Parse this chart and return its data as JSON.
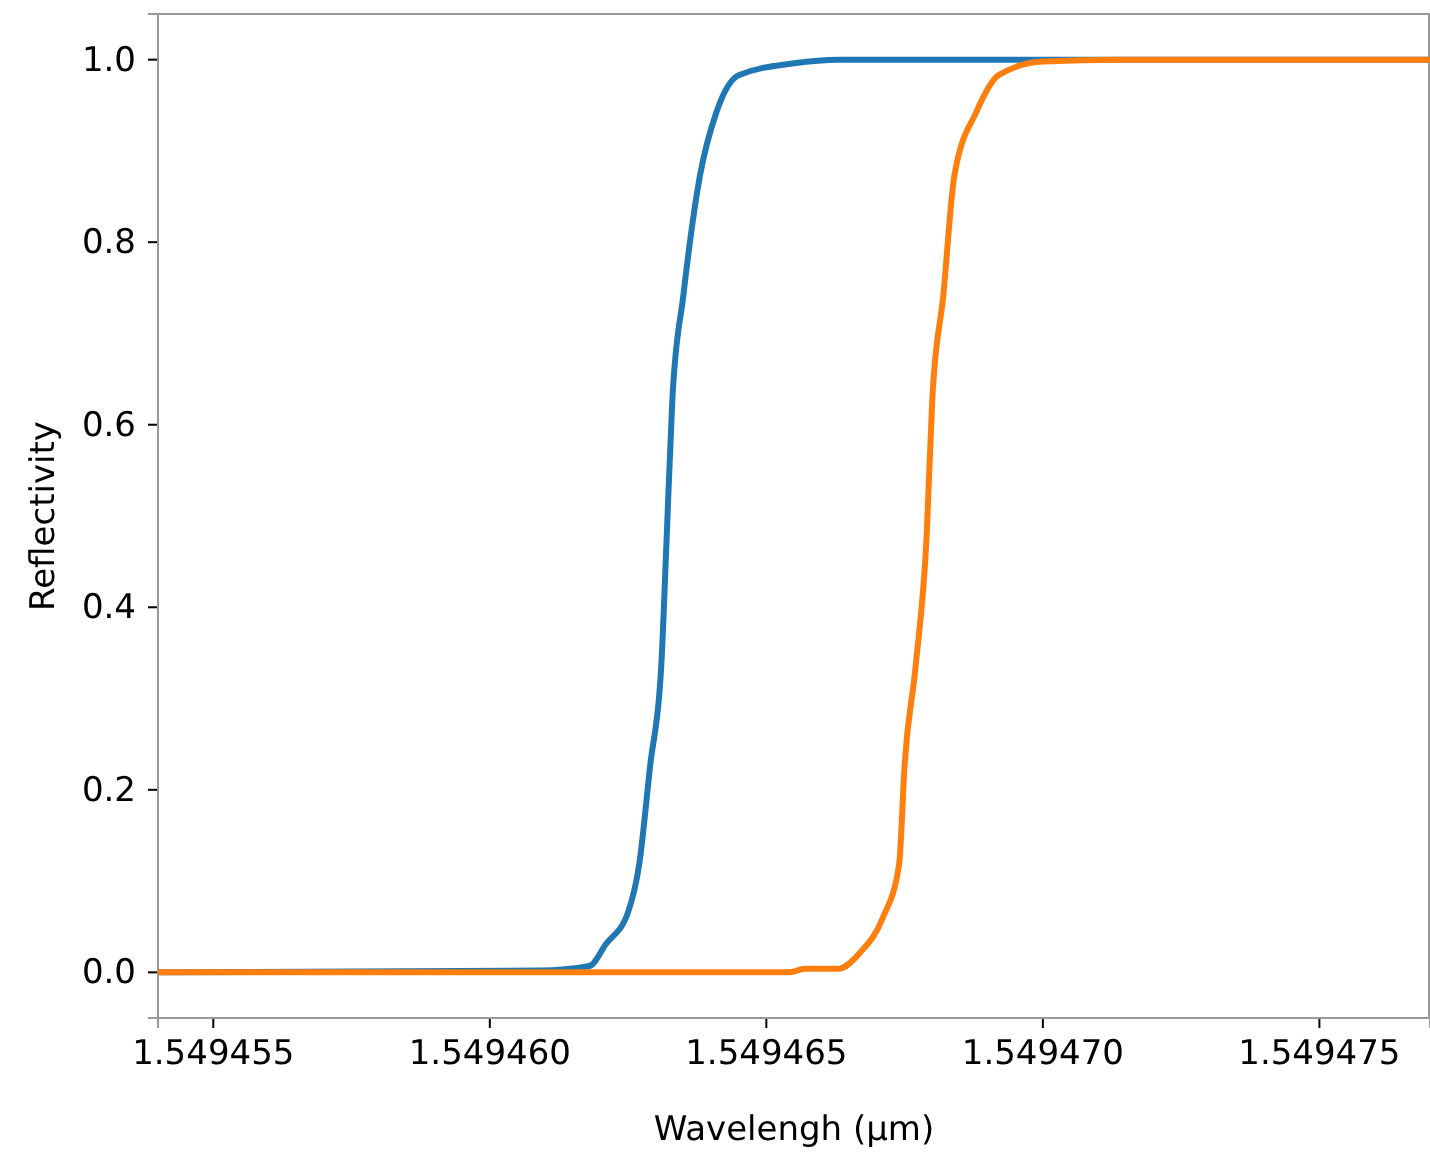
{
  "chart_data": {
    "type": "line",
    "xlabel": "Wavelengh (μm)",
    "ylabel": "Reflectivity",
    "xlim": [
      1.549454,
      1.549477
    ],
    "ylim": [
      -0.05,
      1.05
    ],
    "xticks": [
      1.549455,
      {
        "value": 1.54946,
        "label": "1.549460"
      },
      1.549465,
      {
        "value": 1.54947,
        "label": "1.549470"
      },
      1.549475
    ],
    "yticks": [
      {
        "value": 0,
        "label": "0.0"
      },
      0.2,
      0.4,
      0.6,
      0.8,
      {
        "value": 1,
        "label": "1.0"
      }
    ],
    "grid": false,
    "marker": "none",
    "line_style": "solid",
    "series": [
      {
        "color": "#1f77b4",
        "x": [
          1.549454,
          1.5494609,
          1.5494618,
          1.5494621,
          1.5494625,
          1.5494627,
          1.5494629,
          1.5494631,
          1.5494632,
          1.5494633,
          1.5494635,
          1.5494638,
          1.5494641,
          1.5494645,
          1.5494655,
          1.5494663,
          1.549477
        ],
        "values": [
          0,
          0.002,
          0.007,
          0.031,
          0.066,
          0.118,
          0.227,
          0.336,
          0.48,
          0.627,
          0.742,
          0.873,
          0.943,
          0.983,
          0.996,
          1,
          1
        ]
      },
      {
        "color": "#ff7f0e",
        "x": [
          1.549454,
          1.5494654,
          1.5494657,
          1.5494663,
          1.5494667,
          1.5494671,
          1.5494674,
          1.5494675,
          1.5494677,
          1.5494679,
          1.549468,
          1.5494682,
          1.5494684,
          1.5494688,
          1.5494692,
          1.54947,
          1.5494714,
          1.549477
        ],
        "values": [
          0,
          0,
          0.004,
          0.004,
          0.022,
          0.059,
          0.118,
          0.227,
          0.336,
          0.48,
          0.627,
          0.742,
          0.873,
          0.943,
          0.983,
          0.998,
          1,
          1
        ]
      }
    ]
  }
}
